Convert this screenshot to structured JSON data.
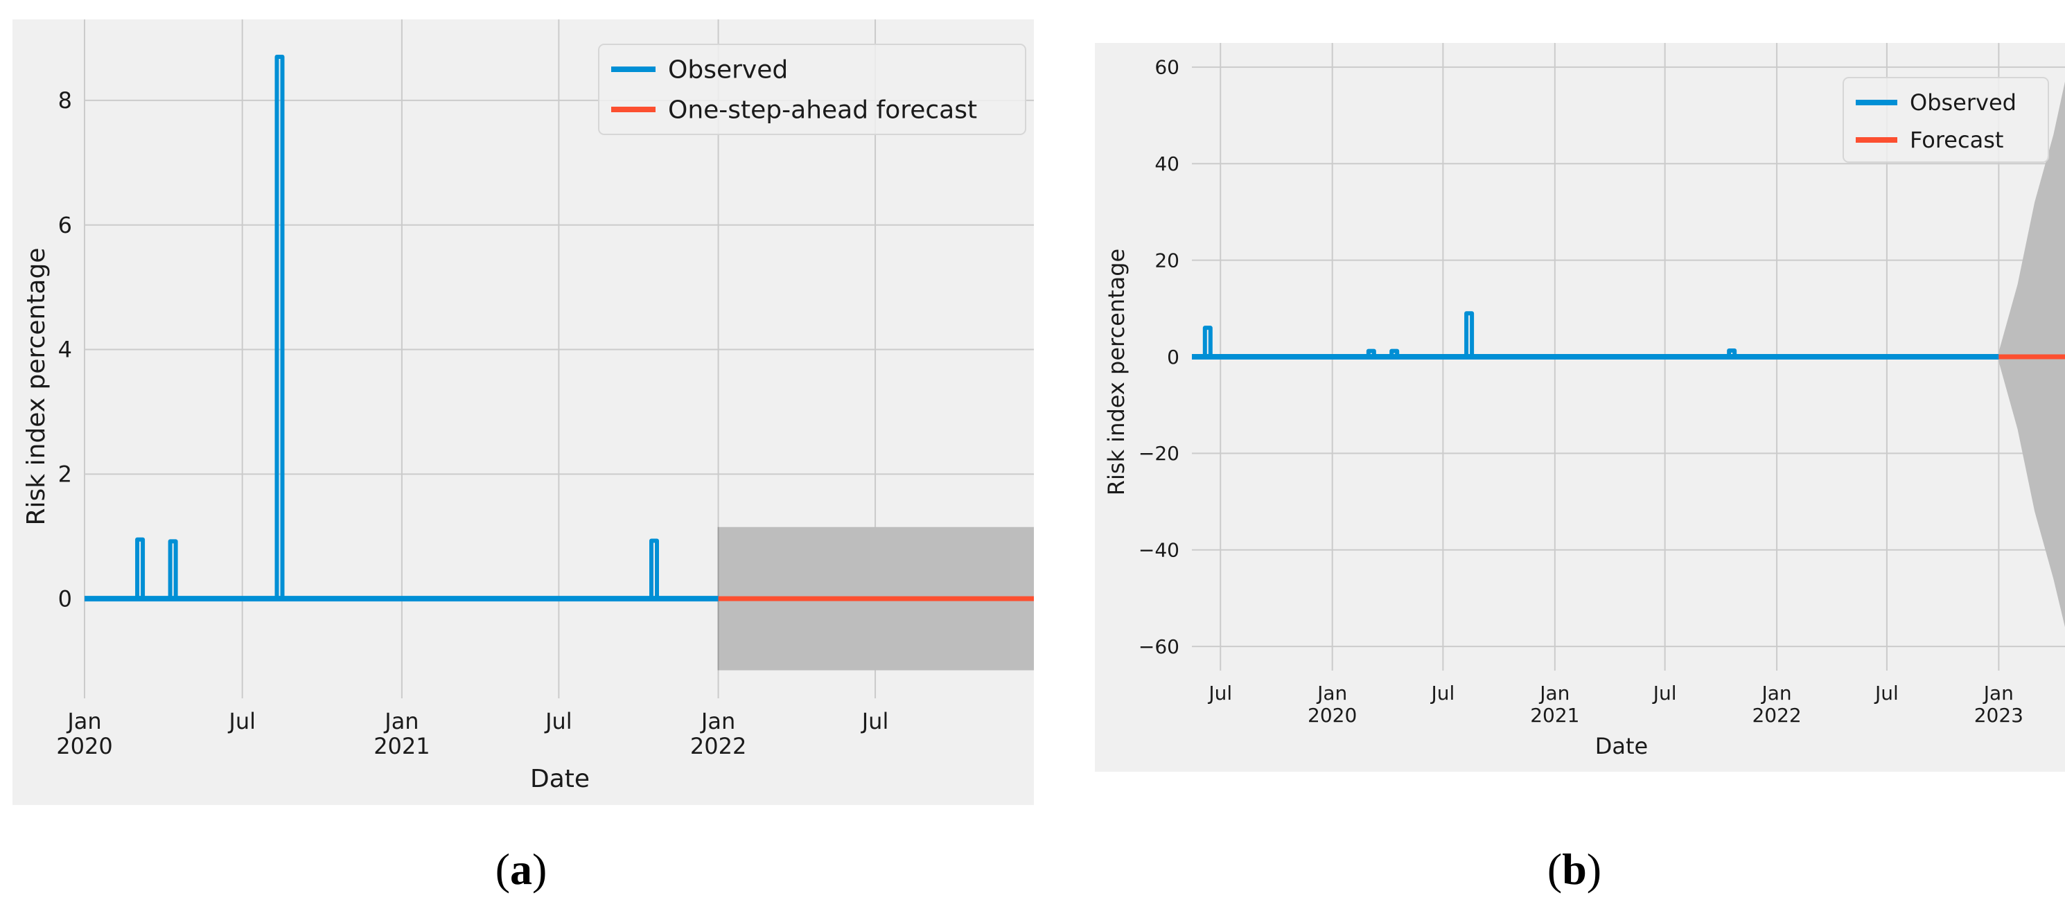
{
  "chart_data": [
    {
      "panel_label": "(a)",
      "type": "line",
      "xlabel": "Date",
      "ylabel": "Risk index percentage",
      "xlim": [
        "2020-01-01",
        "2022-12-31"
      ],
      "ylim": [
        -1.6,
        9.3
      ],
      "x_tick_labels": [
        {
          "x": "2020-01-01",
          "line1": "Jan",
          "line2": "2020"
        },
        {
          "x": "2020-07-01",
          "line1": "Jul",
          "line2": ""
        },
        {
          "x": "2021-01-01",
          "line1": "Jan",
          "line2": "2021"
        },
        {
          "x": "2021-07-01",
          "line1": "Jul",
          "line2": ""
        },
        {
          "x": "2022-01-01",
          "line1": "Jan",
          "line2": "2022"
        },
        {
          "x": "2022-07-01",
          "line1": "Jul",
          "line2": ""
        }
      ],
      "y_ticks": [
        {
          "value": 0,
          "label": "0"
        },
        {
          "value": 2,
          "label": "2"
        },
        {
          "value": 4,
          "label": "4"
        },
        {
          "value": 6,
          "label": "6"
        },
        {
          "value": 8,
          "label": "8"
        }
      ],
      "grid": true,
      "legend_position": "top-right",
      "series": [
        {
          "name": "Observed",
          "color": "#008fd5",
          "baseline": 0,
          "x_range": [
            "2020-01-01",
            "2022-01-01"
          ],
          "spikes": [
            {
              "x": "2020-03-05",
              "y": 0.95
            },
            {
              "x": "2020-04-12",
              "y": 0.92
            },
            {
              "x": "2020-08-13",
              "y": 8.7
            },
            {
              "x": "2021-10-19",
              "y": 0.93
            }
          ]
        },
        {
          "name": "One-step-ahead forecast",
          "color": "#fc4f30",
          "x_range": [
            "2022-01-01",
            "2022-12-31"
          ],
          "value": 0
        }
      ],
      "confidence_band": {
        "x_range": [
          "2022-01-01",
          "2022-12-31"
        ],
        "lower": -1.15,
        "upper": 1.15,
        "color": "#bdbdbd"
      }
    },
    {
      "panel_label": "(b)",
      "type": "line",
      "xlabel": "Date",
      "ylabel": "Risk index percentage",
      "xlim": [
        "2019-05-15",
        "2023-04-20"
      ],
      "ylim": [
        -65,
        65
      ],
      "x_tick_labels": [
        {
          "x": "2019-07-01",
          "line1": "Jul",
          "line2": ""
        },
        {
          "x": "2020-01-01",
          "line1": "Jan",
          "line2": "2020"
        },
        {
          "x": "2020-07-01",
          "line1": "Jul",
          "line2": ""
        },
        {
          "x": "2021-01-01",
          "line1": "Jan",
          "line2": "2021"
        },
        {
          "x": "2021-07-01",
          "line1": "Jul",
          "line2": ""
        },
        {
          "x": "2022-01-01",
          "line1": "Jan",
          "line2": "2022"
        },
        {
          "x": "2022-07-01",
          "line1": "Jul",
          "line2": ""
        },
        {
          "x": "2023-01-01",
          "line1": "Jan",
          "line2": "2023"
        }
      ],
      "y_ticks": [
        {
          "value": -60,
          "label": "−60"
        },
        {
          "value": -40,
          "label": "−40"
        },
        {
          "value": -20,
          "label": "−20"
        },
        {
          "value": 0,
          "label": "0"
        },
        {
          "value": 20,
          "label": "20"
        },
        {
          "value": 40,
          "label": "40"
        },
        {
          "value": 60,
          "label": "60"
        }
      ],
      "grid": true,
      "legend_position": "top-right",
      "series": [
        {
          "name": "Observed",
          "color": "#008fd5",
          "baseline": 0,
          "x_range": [
            "2019-05-15",
            "2023-01-01"
          ],
          "spikes": [
            {
              "x": "2019-06-10",
              "y": 6
            },
            {
              "x": "2020-03-05",
              "y": 1.2
            },
            {
              "x": "2020-04-12",
              "y": 1.2
            },
            {
              "x": "2020-08-13",
              "y": 9
            },
            {
              "x": "2021-10-19",
              "y": 1.3
            }
          ]
        },
        {
          "name": "Forecast",
          "color": "#fc4f30",
          "x_range": [
            "2023-01-01",
            "2023-04-20"
          ],
          "value": 0
        }
      ],
      "confidence_band": {
        "color": "#bdbdbd",
        "points": [
          {
            "x": "2023-01-01",
            "lower": -1,
            "upper": 1
          },
          {
            "x": "2023-02-01",
            "lower": -15,
            "upper": 15
          },
          {
            "x": "2023-03-01",
            "lower": -32,
            "upper": 32
          },
          {
            "x": "2023-04-01",
            "lower": -46,
            "upper": 46
          },
          {
            "x": "2023-04-20",
            "lower": -56,
            "upper": 57
          }
        ]
      }
    }
  ],
  "captions": {
    "a": "(a)",
    "b": "(b)",
    "a_bold": "a",
    "b_bold": "b"
  },
  "style": {
    "panel_bg": "#f0f0f0",
    "grid_color": "#cbcbcb",
    "text_color": "#1a1a1a"
  }
}
